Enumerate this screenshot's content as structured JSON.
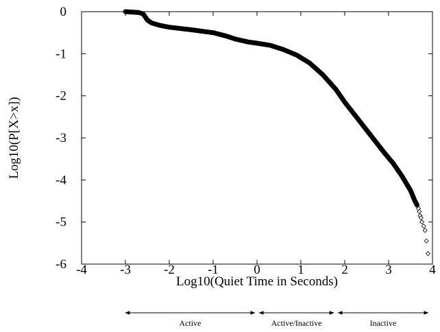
{
  "chart_data": {
    "type": "scatter",
    "xlabel": "Log10(Quiet Time in Seconds)",
    "ylabel": "Log10(P[X>x])",
    "xlim": [
      -4,
      4
    ],
    "ylim": [
      -6,
      0
    ],
    "xticks": [
      -4,
      -3,
      -2,
      -1,
      0,
      1,
      2,
      3,
      4
    ],
    "yticks": [
      -6,
      -5,
      -4,
      -3,
      -2,
      -1,
      0
    ],
    "series": [
      {
        "color": "#000000",
        "style": "line",
        "x": [
          -3,
          -2.7,
          -2.6,
          -2.55,
          -2.5,
          -2.4,
          -2.2,
          -2,
          -1.5,
          -1,
          -0.7,
          -0.5,
          -0.2,
          0,
          0.3,
          0.6,
          0.9,
          1.2,
          1.5,
          1.8,
          2.0,
          2.3,
          2.6,
          2.9,
          3.1,
          3.3,
          3.5,
          3.6,
          3.65
        ],
        "values": [
          0,
          -0.02,
          -0.05,
          -0.12,
          -0.2,
          -0.27,
          -0.33,
          -0.37,
          -0.43,
          -0.5,
          -0.58,
          -0.65,
          -0.72,
          -0.75,
          -0.8,
          -0.9,
          -1.03,
          -1.22,
          -1.5,
          -1.85,
          -2.15,
          -2.55,
          -2.95,
          -3.35,
          -3.6,
          -3.9,
          -4.25,
          -4.5,
          -4.6
        ]
      },
      {
        "color": "#000000",
        "style": "marker",
        "x": [
          3.68,
          3.7,
          3.72,
          3.74,
          3.76,
          3.8,
          3.83,
          3.86,
          3.9
        ],
        "values": [
          -4.68,
          -4.75,
          -4.85,
          -4.9,
          -5.0,
          -5.1,
          -5.2,
          -5.45,
          -5.75
        ]
      }
    ],
    "annotations": [
      {
        "text": "Active",
        "x": [
          -3,
          -0.05
        ]
      },
      {
        "text": "Active/Inactive",
        "x": [
          0.05,
          1.75
        ]
      },
      {
        "text": "Inactive",
        "x": [
          1.85,
          3.9
        ]
      }
    ]
  }
}
